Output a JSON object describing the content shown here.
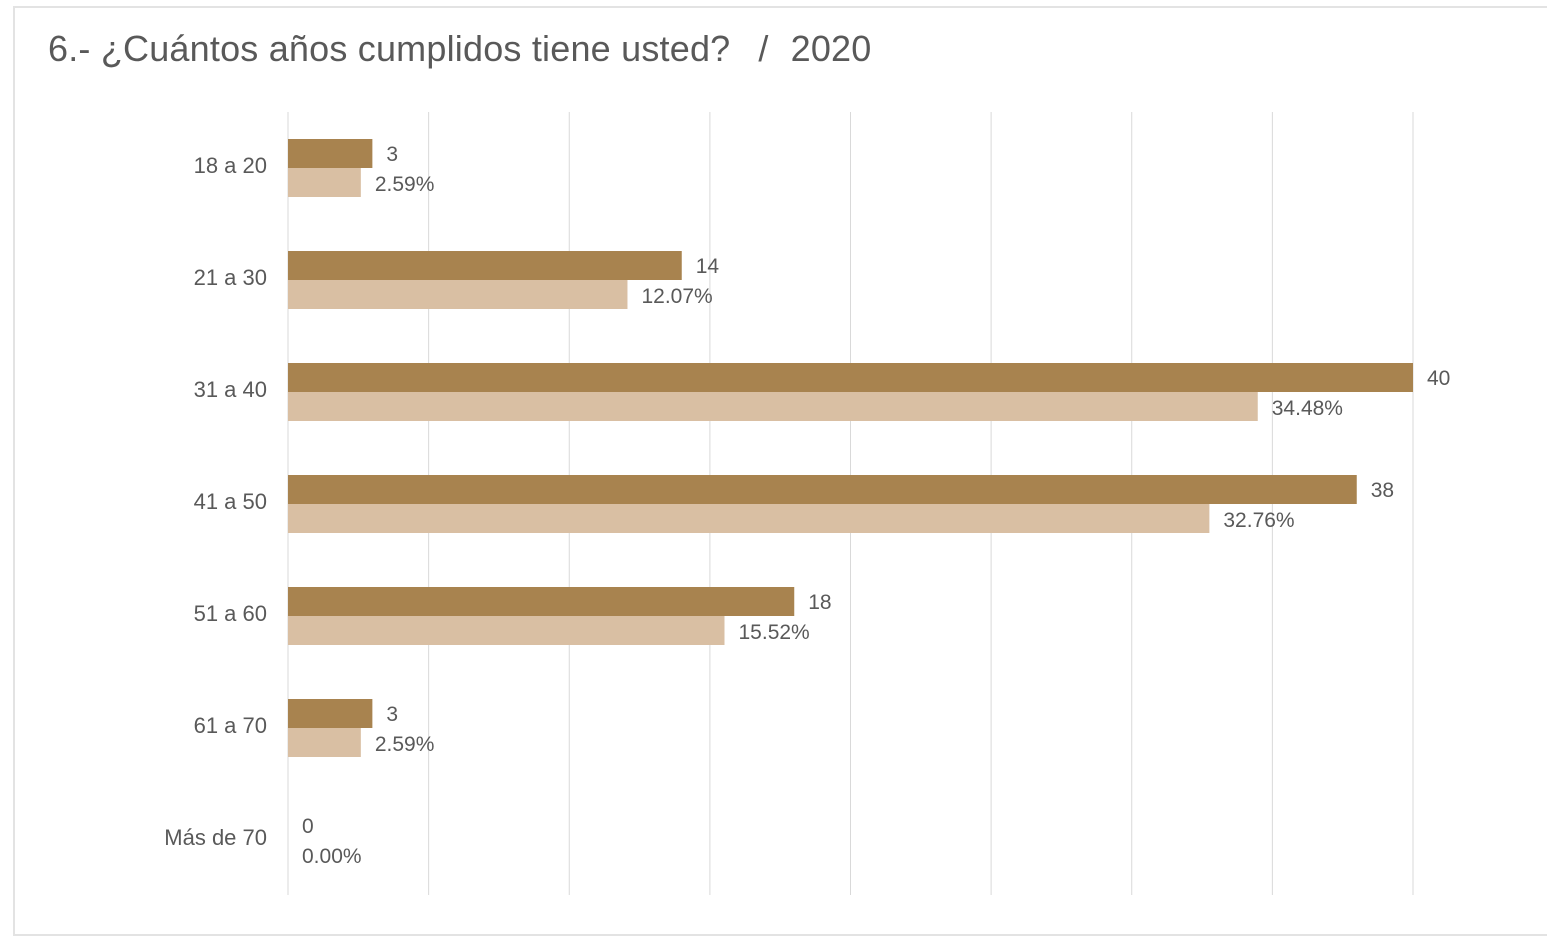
{
  "title": {
    "question": "6.- ¿Cuántos años cumplidos tiene usted?",
    "separator": "/",
    "year": "2020"
  },
  "colors": {
    "count_bar": "#a8834f",
    "percent_bar": "#d9bfa3",
    "gridline": "#d9d9d9",
    "text": "#595959",
    "card_border": "#e3e3e3"
  },
  "chart_data": {
    "type": "bar",
    "orientation": "horizontal",
    "categories": [
      "18 a 20",
      "21 a 30",
      "31 a 40",
      "41 a 50",
      "51 a 60",
      "61 a 70",
      "Más de 70"
    ],
    "series": [
      {
        "values": [
          3,
          14,
          40,
          38,
          18,
          3,
          0
        ],
        "labels": [
          "3",
          "14",
          "40",
          "38",
          "18",
          "3",
          "0"
        ]
      },
      {
        "values": [
          2.59,
          12.07,
          34.48,
          32.76,
          15.52,
          2.59,
          0.0
        ],
        "labels": [
          "2.59%",
          "12.07%",
          "34.48%",
          "32.76%",
          "15.52%",
          "2.59%",
          "0.00%"
        ]
      }
    ],
    "xlim": [
      0,
      40
    ],
    "grid": true,
    "legend": "none",
    "title": "6.- ¿Cuántos años cumplidos tiene usted? / 2020",
    "xlabel": "",
    "ylabel": ""
  }
}
